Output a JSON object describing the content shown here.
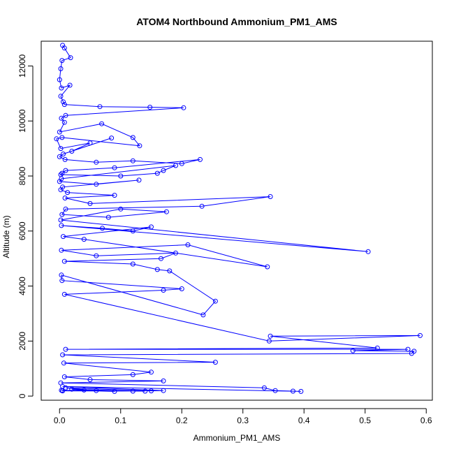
{
  "chart_data": {
    "type": "scatter",
    "mode": "lines+markers",
    "title": "ATOM4 Northbound Ammonium_PM1_AMS",
    "xlabel": "Ammonium_PM1_AMS",
    "ylabel": "Altitude (m)",
    "xlim": [
      -0.03,
      0.61
    ],
    "ylim": [
      -150,
      12900
    ],
    "x_ticks": [
      0.0,
      0.1,
      0.2,
      0.3,
      0.4,
      0.5,
      0.6
    ],
    "x_tick_labels": [
      "0.0",
      "0.1",
      "0.2",
      "0.3",
      "0.4",
      "0.5",
      "0.6"
    ],
    "y_ticks": [
      0,
      2000,
      4000,
      6000,
      8000,
      10000,
      12000
    ],
    "y_tick_labels": [
      "0",
      "2000",
      "4000",
      "6000",
      "8000",
      "10000",
      "12000"
    ],
    "grid": false,
    "legend": "none",
    "series_color": "#0000ff",
    "series": [
      {
        "x": [
          0.005,
          0.008,
          0.018,
          0.004,
          0.002,
          0.0,
          0.003,
          0.017,
          0.002,
          0.006,
          0.008,
          0.066,
          0.148,
          0.203,
          0.01,
          0.003,
          0.008,
          0.0,
          0.069,
          0.12,
          0.131,
          0.004,
          -0.005,
          0.002,
          0.05,
          0.02,
          0.085,
          0.006,
          0.0,
          0.009,
          0.06,
          0.12,
          0.2,
          0.23,
          0.09,
          0.01,
          0.004,
          0.002,
          0.1,
          0.16,
          0.17,
          0.19,
          0.003,
          0.0,
          0.06,
          0.13,
          0.005,
          0.002,
          0.013,
          0.09,
          0.009,
          0.05,
          0.345,
          0.233,
          0.01,
          0.004,
          0.08,
          0.175,
          0.1,
          0.002,
          0.505,
          0.003,
          0.07,
          0.12,
          0.15,
          0.006,
          0.04,
          0.34,
          0.21,
          0.003,
          0.06,
          0.19,
          0.166,
          0.008,
          0.12,
          0.16,
          0.18,
          0.255,
          0.235,
          0.003,
          0.004,
          0.2,
          0.17,
          0.008,
          0.343,
          0.59,
          0.345,
          0.52,
          0.01,
          0.57,
          0.48,
          0.58,
          0.576,
          0.005,
          0.255,
          0.007,
          0.15,
          0.12,
          0.008,
          0.05,
          0.17,
          0.002,
          0.335,
          0.353,
          0.382,
          0.395,
          0.005,
          0.17,
          0.15,
          0.01,
          0.06,
          0.02,
          0.12,
          0.005,
          0.04,
          0.09,
          0.003,
          0.14,
          0.005
        ],
        "y": [
          12750,
          12650,
          12300,
          12200,
          11900,
          11500,
          11200,
          11300,
          10900,
          10700,
          10600,
          10520,
          10500,
          10480,
          10200,
          10100,
          9950,
          9600,
          9900,
          9400,
          9100,
          9400,
          9350,
          9000,
          9200,
          8900,
          9380,
          8800,
          8700,
          8600,
          8500,
          8550,
          8450,
          8600,
          8300,
          8200,
          8100,
          8050,
          8000,
          8100,
          8200,
          8380,
          7900,
          7800,
          7700,
          7850,
          7600,
          7500,
          7400,
          7300,
          7200,
          7000,
          7250,
          6900,
          6800,
          6600,
          6500,
          6700,
          6800,
          6400,
          5250,
          6200,
          6100,
          6000,
          6150,
          5800,
          5700,
          4700,
          5500,
          5300,
          5100,
          5200,
          5000,
          4900,
          4800,
          4600,
          4550,
          3450,
          2950,
          4400,
          4200,
          3900,
          3850,
          3700,
          2000,
          2200,
          2180,
          1750,
          1700,
          1700,
          1650,
          1630,
          1550,
          1500,
          1230,
          1200,
          870,
          780,
          700,
          600,
          550,
          480,
          300,
          200,
          180,
          170,
          350,
          200,
          190,
          300,
          200,
          250,
          180,
          200,
          220,
          170,
          210,
          180,
          190
        ]
      }
    ]
  }
}
